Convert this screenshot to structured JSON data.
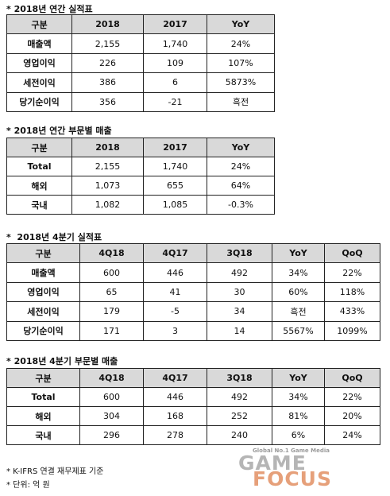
{
  "tables": [
    {
      "title": "* 2018년 연간 실적표",
      "header": [
        "구분",
        "2018",
        "2017",
        "YoY"
      ],
      "rows": [
        [
          "매출액",
          "2,155",
          "1,740",
          "24%"
        ],
        [
          "영업이익",
          "226",
          "109",
          "107%"
        ],
        [
          "세전이익",
          "386",
          "6",
          "5873%"
        ],
        [
          "당기순이익",
          "356",
          "-21",
          "흑전"
        ]
      ]
    },
    {
      "title": "* 2018년 연간 부문별 매출",
      "header": [
        "구분",
        "2018",
        "2017",
        "YoY"
      ],
      "rows": [
        [
          "Total",
          "2,155",
          "1,740",
          "24%"
        ],
        [
          "해외",
          "1,073",
          "655",
          "64%"
        ],
        [
          "국내",
          "1,082",
          "1,085",
          "-0.3%"
        ]
      ]
    },
    {
      "title": "*  2018년 4분기 실적표",
      "header": [
        "구분",
        "4Q18",
        "4Q17",
        "3Q18",
        "YoY",
        "QoQ"
      ],
      "rows": [
        [
          "매출액",
          "600",
          "446",
          "492",
          "34%",
          "22%"
        ],
        [
          "영업이익",
          "65",
          "41",
          "30",
          "60%",
          "118%"
        ],
        [
          "세전이익",
          "179",
          "-5",
          "34",
          "흑전",
          "433%"
        ],
        [
          "당기순이익",
          "171",
          "3",
          "14",
          "5567%",
          "1099%"
        ]
      ]
    },
    {
      "title": "* 2018년 4분기 부문별 매출",
      "header": [
        "구분",
        "4Q18",
        "4Q17",
        "3Q18",
        "YoY",
        "QoQ"
      ],
      "rows": [
        [
          "Total",
          "600",
          "446",
          "492",
          "34%",
          "22%"
        ],
        [
          "해외",
          "304",
          "168",
          "252",
          "81%",
          "20%"
        ],
        [
          "국내",
          "296",
          "278",
          "240",
          "6%",
          "24%"
        ]
      ]
    }
  ],
  "footnotes": [
    "* K-IFRS 연결 재무제표 기준",
    "* 단위: 억 원"
  ],
  "logo": {
    "tagline": "Global No.1 Game Media",
    "name_top": "GAME",
    "name_bottom": "FOCUS"
  }
}
